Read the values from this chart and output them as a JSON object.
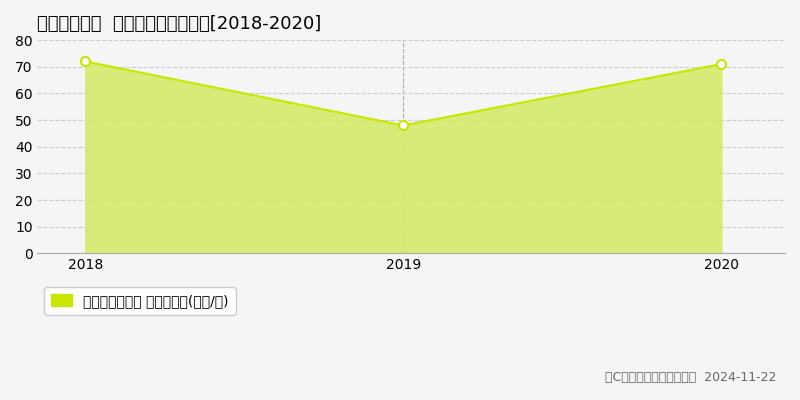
{
  "title": "明石市大観町  マンション価格推移[2018-2020]",
  "x_values": [
    2018,
    2019,
    2020
  ],
  "y_values": [
    72,
    48,
    71
  ],
  "line_color": "#c8e600",
  "fill_color": "#d4ec6a",
  "fill_alpha": 0.9,
  "marker_face_color": "#ffffff",
  "marker_edge_color": "#c8e600",
  "marker_size": 6,
  "ylim": [
    0,
    80
  ],
  "yticks": [
    0,
    10,
    20,
    30,
    40,
    50,
    60,
    70,
    80
  ],
  "xticks": [
    2018,
    2019,
    2020
  ],
  "grid_color": "#cccccc",
  "grid_style": "--",
  "vline_x": 2019,
  "vline_color": "#aaaaaa",
  "vline_style": "--",
  "legend_label": "マンション価格 平均坪単価(万円/坪)",
  "legend_marker_color": "#c8e600",
  "copyright_text": "（C）土地価格ドットコム  2024-11-22",
  "bg_color": "#f5f5f5",
  "plot_bg_color": "#f5f5f5",
  "title_fontsize": 13,
  "axis_fontsize": 10,
  "legend_fontsize": 10,
  "copyright_fontsize": 9
}
